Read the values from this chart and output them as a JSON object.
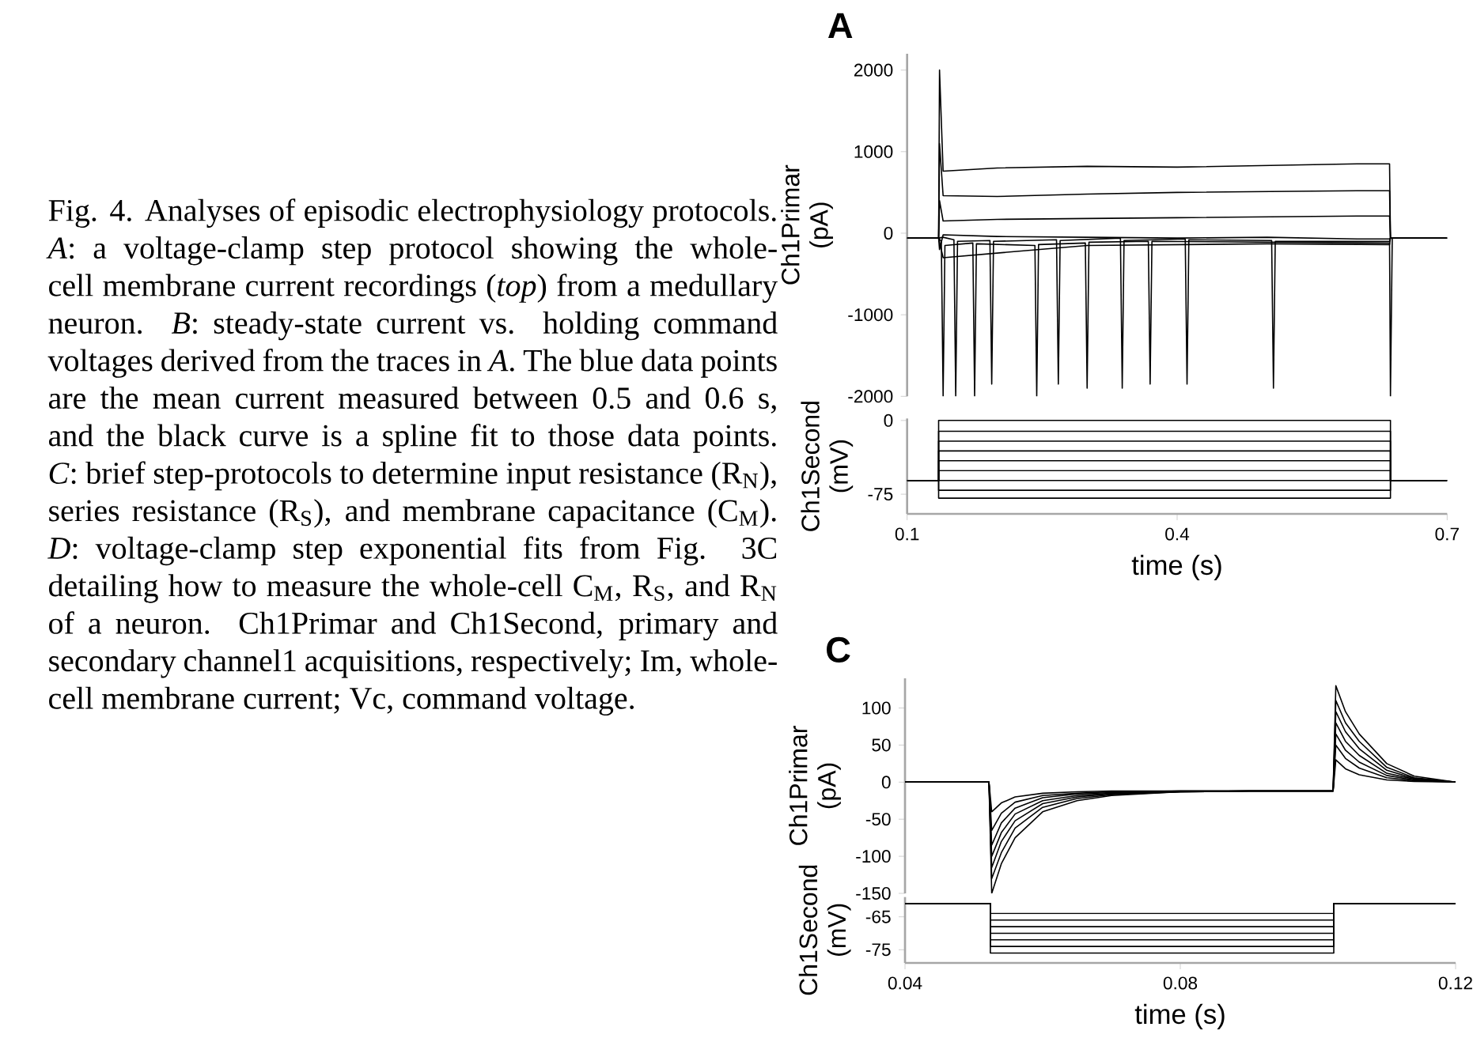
{
  "chart_data": [
    {
      "type": "line",
      "title": "A",
      "ylabel": "Ch1Primar (pA)",
      "tick_labels": "y",
      "xlim": [
        0.1,
        0.7
      ],
      "ylim": [
        -2000,
        2200
      ],
      "yticks": [
        -2000,
        -1000,
        0,
        1000,
        2000
      ],
      "annotations": [
        "Fig. 4. Analyses of episodic electrophysiology protocols. *A*: a voltage-clamp step protocol showing the whole-cell membrane current recordings (*top*) from a medullary neuron. *B*: steady-state current vs. holding command voltages derived from the traces in *A*. The blue data points are the mean current measured between 0.5 and 0.6 s, and the black curve is a spline fit to those data points. *C*: brief step-protocols to determine input resistance (R$_{N}$), series resistance (R$_{S}$), and membrane capacitance (C$_{M}$). *D*: voltage-clamp step exponential fits from Fig. 3C detailing how to measure the whole-cell C$_{M}$, R$_{S}$, and R$_{N}$ of a neuron. Ch1Primar and Ch1Second, primary and secondary channel1 acquisitions, respectively; Im, whole-cell membrane current; Vc, command voltage."
      ],
      "x": [
        0.1,
        0.135,
        0.136,
        0.14,
        0.2,
        0.3,
        0.4,
        0.5,
        0.6,
        0.636,
        0.637,
        0.645,
        0.7
      ],
      "series": [
        {
          "color": "#000000",
          "values": [
            -60,
            -60,
            2000,
            760,
            800,
            820,
            810,
            830,
            850,
            850,
            -60,
            -60,
            -60
          ]
        },
        {
          "color": "#000000",
          "values": [
            -60,
            -60,
            1100,
            460,
            450,
            480,
            500,
            510,
            520,
            520,
            -60,
            -60,
            -60
          ]
        },
        {
          "color": "#000000",
          "values": [
            -60,
            -60,
            400,
            150,
            170,
            180,
            190,
            200,
            210,
            210,
            -60,
            -60,
            -60
          ]
        },
        {
          "color": "#000000",
          "values": [
            -60,
            -60,
            -200,
            -20,
            -40,
            -50,
            -60,
            -50,
            -70,
            -70,
            -60,
            -60,
            -60
          ]
        },
        {
          "color": "#000000",
          "x": [
            0.1,
            0.135,
            0.138,
            0.14,
            0.142,
            0.173,
            0.175,
            0.177,
            0.242,
            0.244,
            0.246,
            0.298,
            0.3,
            0.302,
            0.368,
            0.37,
            0.372,
            0.636,
            0.637,
            0.639,
            0.7
          ],
          "values": [
            -60,
            -60,
            -100,
            -2000,
            -150,
            -120,
            -2000,
            -130,
            -150,
            -2000,
            -140,
            -120,
            -1900,
            -110,
            -100,
            -1850,
            -100,
            -120,
            -2000,
            -60,
            -60
          ]
        },
        {
          "color": "#000000",
          "x": [
            0.1,
            0.135,
            0.14,
            0.152,
            0.154,
            0.156,
            0.192,
            0.194,
            0.196,
            0.266,
            0.268,
            0.27,
            0.337,
            0.339,
            0.341,
            0.409,
            0.411,
            0.413,
            0.505,
            0.507,
            0.509,
            0.636,
            0.637,
            0.7
          ],
          "values": [
            -60,
            -60,
            -50,
            -80,
            -2000,
            -100,
            -90,
            -1850,
            -100,
            -80,
            -1850,
            -90,
            -60,
            -1900,
            -90,
            -70,
            -1850,
            -80,
            -90,
            -1900,
            -100,
            -100,
            -60,
            -60
          ]
        },
        {
          "color": "#000000",
          "x": [
            0.1,
            0.135,
            0.14,
            0.3,
            0.5,
            0.636,
            0.637,
            0.7
          ],
          "values": [
            -60,
            -60,
            -300,
            -150,
            -130,
            -140,
            -60,
            -60
          ]
        }
      ]
    },
    {
      "type": "line",
      "xlabel": "time (s)",
      "ylabel": "Ch1Second (mV)",
      "xlim": [
        0.1,
        0.7
      ],
      "ylim": [
        -95,
        2
      ],
      "xticks": [
        0.1,
        0.4,
        0.7
      ],
      "yticks": [
        -75,
        0
      ],
      "x": [
        0.1,
        0.135,
        0.135,
        0.637,
        0.637,
        0.7
      ],
      "series": [
        {
          "color": "#000000",
          "values": [
            -61,
            -61,
            0,
            0,
            -61,
            -61
          ]
        },
        {
          "color": "#000000",
          "values": [
            -61,
            -61,
            -11,
            -11,
            -61,
            -61
          ]
        },
        {
          "color": "#000000",
          "values": [
            -61,
            -61,
            -21,
            -21,
            -61,
            -61
          ]
        },
        {
          "color": "#000000",
          "values": [
            -61,
            -61,
            -31,
            -31,
            -61,
            -61
          ]
        },
        {
          "color": "#000000",
          "values": [
            -61,
            -61,
            -41,
            -41,
            -61,
            -61
          ]
        },
        {
          "color": "#000000",
          "values": [
            -61,
            -61,
            -51,
            -51,
            -61,
            -61
          ]
        },
        {
          "color": "#000000",
          "x": [
            0.1,
            0.7
          ],
          "values": [
            -61,
            -61
          ]
        },
        {
          "color": "#000000",
          "values": [
            -61,
            -61,
            -71,
            -71,
            -61,
            -61
          ]
        },
        {
          "color": "#000000",
          "values": [
            -61,
            -61,
            -79,
            -79,
            -61,
            -61
          ]
        }
      ]
    },
    {
      "type": "line",
      "title": "C",
      "ylabel": "Ch1Primar (pA)",
      "tick_labels": "y",
      "xlim": [
        0.04,
        0.12
      ],
      "ylim": [
        -150,
        140
      ],
      "yticks": [
        -150,
        -100,
        -50,
        0,
        50,
        100
      ],
      "x": [
        0.04,
        0.0522,
        0.0526,
        0.054,
        0.056,
        0.06,
        0.065,
        0.07,
        0.08,
        0.09,
        0.1022,
        0.1026,
        0.104,
        0.106,
        0.11,
        0.114,
        0.12
      ],
      "series": [
        {
          "color": "#000000",
          "values": [
            0,
            0,
            -150,
            -110,
            -75,
            -40,
            -25,
            -18,
            -13,
            -12,
            -12,
            130,
            95,
            65,
            25,
            8,
            0
          ]
        },
        {
          "color": "#000000",
          "values": [
            0,
            0,
            -130,
            -95,
            -62,
            -34,
            -22,
            -17,
            -13,
            -12,
            -12,
            110,
            80,
            55,
            20,
            6,
            0
          ]
        },
        {
          "color": "#000000",
          "values": [
            0,
            0,
            -115,
            -80,
            -52,
            -29,
            -20,
            -16,
            -13,
            -12,
            -12,
            95,
            68,
            45,
            16,
            5,
            0
          ]
        },
        {
          "color": "#000000",
          "values": [
            0,
            0,
            -100,
            -68,
            -43,
            -25,
            -18,
            -15,
            -13,
            -12,
            -12,
            80,
            55,
            36,
            12,
            4,
            0
          ]
        },
        {
          "color": "#000000",
          "values": [
            0,
            0,
            -85,
            -55,
            -35,
            -21,
            -16,
            -14,
            -12,
            -12,
            -12,
            65,
            43,
            27,
            9,
            3,
            0
          ]
        },
        {
          "color": "#000000",
          "values": [
            0,
            0,
            -65,
            -42,
            -27,
            -18,
            -15,
            -13,
            -12,
            -12,
            -12,
            50,
            32,
            19,
            6,
            2,
            0
          ]
        },
        {
          "color": "#000000",
          "values": [
            0,
            0,
            -40,
            -28,
            -20,
            -15,
            -13,
            -12,
            -12,
            -12,
            -12,
            30,
            18,
            10,
            3,
            1,
            0
          ]
        }
      ]
    },
    {
      "type": "line",
      "xlabel": "time (s)",
      "ylabel": "Ch1Second (mV)",
      "xlim": [
        0.04,
        0.12
      ],
      "ylim": [
        -79,
        -59
      ],
      "xticks": [
        0.04,
        0.08,
        0.12
      ],
      "yticks": [
        -75,
        -65
      ],
      "x": [
        0.04,
        0.0524,
        0.0524,
        0.1023,
        0.1023,
        0.12
      ],
      "series": [
        {
          "color": "#000000",
          "values": [
            -61,
            -61,
            -64,
            -64,
            -61,
            -61
          ]
        },
        {
          "color": "#000000",
          "values": [
            -61,
            -61,
            -66,
            -66,
            -61,
            -61
          ]
        },
        {
          "color": "#000000",
          "values": [
            -61,
            -61,
            -68,
            -68,
            -61,
            -61
          ]
        },
        {
          "color": "#000000",
          "values": [
            -61,
            -61,
            -70,
            -70,
            -61,
            -61
          ]
        },
        {
          "color": "#000000",
          "values": [
            -61,
            -61,
            -72,
            -72,
            -61,
            -61
          ]
        },
        {
          "color": "#000000",
          "values": [
            -61,
            -61,
            -74,
            -74,
            -61,
            -61
          ]
        },
        {
          "color": "#000000",
          "values": [
            -61,
            -61,
            -76,
            -76,
            -61,
            -61
          ]
        }
      ]
    }
  ]
}
